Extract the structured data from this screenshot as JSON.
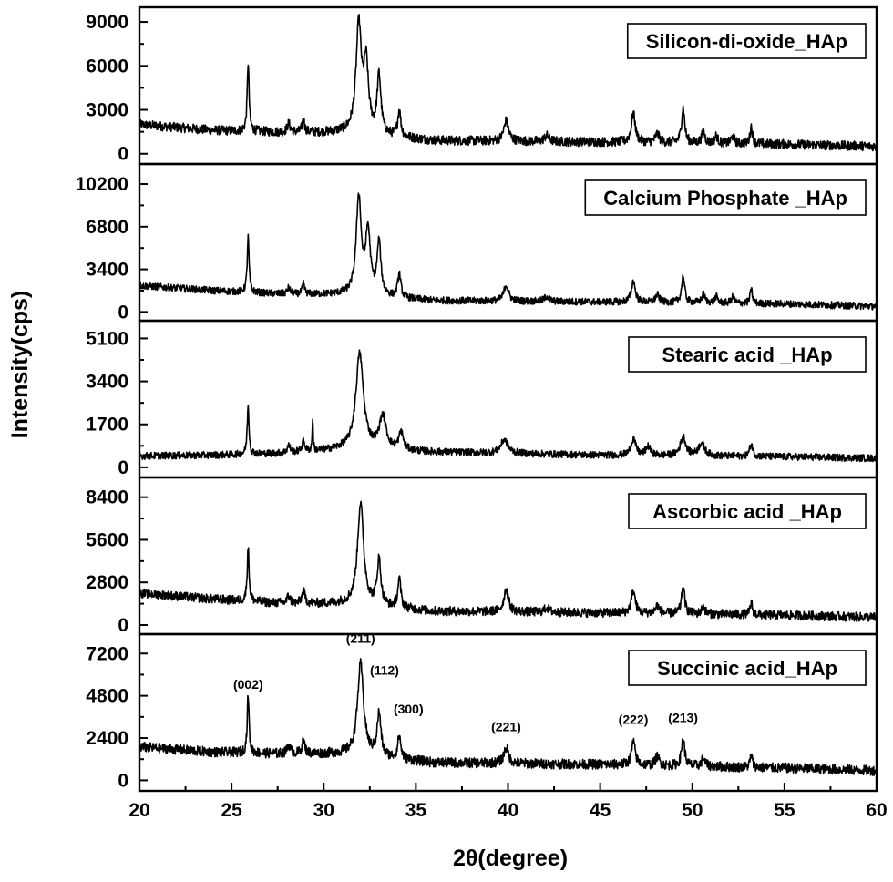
{
  "chart_data": {
    "type": "line",
    "layout": "stacked-panels",
    "xlabel": "2θ(degree)",
    "ylabel": "Intensity(cps)",
    "xlim": [
      20,
      60
    ],
    "xticks": [
      20,
      25,
      30,
      35,
      40,
      45,
      50,
      55,
      60
    ],
    "grid": false,
    "legend_placement": "top-right",
    "panels": [
      {
        "name": "Silicon-di-oxide_HAp",
        "ylim": [
          -700,
          10000
        ],
        "yticks": [
          0,
          3000,
          6000,
          9000
        ],
        "baseline": [
          [
            20,
            2000
          ],
          [
            24,
            1600
          ],
          [
            28,
            1450
          ],
          [
            31,
            1450
          ],
          [
            36,
            900
          ],
          [
            45,
            800
          ],
          [
            55,
            650
          ],
          [
            60,
            500
          ]
        ],
        "peaks": [
          [
            25.9,
            4700,
            0.12
          ],
          [
            28.1,
            600,
            0.2
          ],
          [
            28.9,
            900,
            0.15
          ],
          [
            31.9,
            7300,
            0.35
          ],
          [
            32.3,
            4500,
            0.3
          ],
          [
            33.0,
            4000,
            0.25
          ],
          [
            34.1,
            1800,
            0.2
          ],
          [
            39.9,
            1400,
            0.3
          ],
          [
            42.1,
            400,
            0.3
          ],
          [
            46.8,
            2000,
            0.25
          ],
          [
            48.1,
            600,
            0.25
          ],
          [
            49.5,
            2400,
            0.2
          ],
          [
            50.6,
            800,
            0.2
          ],
          [
            51.3,
            500,
            0.2
          ],
          [
            52.2,
            500,
            0.2
          ],
          [
            53.2,
            1200,
            0.15
          ]
        ],
        "noise": 320
      },
      {
        "name": "Calcium Phosphate _HAp",
        "ylim": [
          -700,
          11800
        ],
        "yticks": [
          0,
          3400,
          6800,
          10200
        ],
        "baseline": [
          [
            20,
            2100
          ],
          [
            24,
            1700
          ],
          [
            28,
            1400
          ],
          [
            31,
            1400
          ],
          [
            36,
            900
          ],
          [
            45,
            800
          ],
          [
            55,
            650
          ],
          [
            60,
            450
          ]
        ],
        "peaks": [
          [
            25.9,
            4400,
            0.12
          ],
          [
            28.1,
            500,
            0.2
          ],
          [
            28.9,
            800,
            0.15
          ],
          [
            31.9,
            7800,
            0.32
          ],
          [
            32.4,
            5000,
            0.3
          ],
          [
            33.0,
            4200,
            0.25
          ],
          [
            34.1,
            1900,
            0.2
          ],
          [
            39.9,
            1300,
            0.3
          ],
          [
            42.1,
            400,
            0.3
          ],
          [
            46.8,
            1700,
            0.25
          ],
          [
            48.1,
            600,
            0.25
          ],
          [
            49.5,
            2100,
            0.2
          ],
          [
            50.6,
            700,
            0.2
          ],
          [
            51.3,
            500,
            0.2
          ],
          [
            52.2,
            500,
            0.2
          ],
          [
            53.2,
            1100,
            0.15
          ]
        ],
        "noise": 280
      },
      {
        "name": "Stearic acid _HAp",
        "ylim": [
          -400,
          5800
        ],
        "yticks": [
          0,
          1700,
          3400,
          5100
        ],
        "baseline": [
          [
            20,
            450
          ],
          [
            24,
            480
          ],
          [
            28,
            550
          ],
          [
            31,
            700
          ],
          [
            36,
            600
          ],
          [
            45,
            480
          ],
          [
            55,
            420
          ],
          [
            60,
            360
          ]
        ],
        "peaks": [
          [
            25.9,
            1900,
            0.12
          ],
          [
            28.1,
            300,
            0.2
          ],
          [
            28.9,
            400,
            0.2
          ],
          [
            29.4,
            1300,
            0.06
          ],
          [
            31.95,
            3800,
            0.5
          ],
          [
            33.2,
            1300,
            0.45
          ],
          [
            34.2,
            700,
            0.3
          ],
          [
            39.8,
            550,
            0.45
          ],
          [
            46.8,
            650,
            0.3
          ],
          [
            47.6,
            350,
            0.3
          ],
          [
            49.5,
            750,
            0.35
          ],
          [
            50.5,
            500,
            0.4
          ],
          [
            53.2,
            500,
            0.2
          ]
        ],
        "noise": 140
      },
      {
        "name": "Ascorbic acid _HAp",
        "ylim": [
          -600,
          9700
        ],
        "yticks": [
          0,
          2800,
          5600,
          8400
        ],
        "baseline": [
          [
            20,
            2100
          ],
          [
            24,
            1700
          ],
          [
            28,
            1400
          ],
          [
            31,
            1400
          ],
          [
            36,
            900
          ],
          [
            45,
            800
          ],
          [
            55,
            650
          ],
          [
            60,
            500
          ]
        ],
        "peaks": [
          [
            25.9,
            3600,
            0.12
          ],
          [
            28.1,
            500,
            0.2
          ],
          [
            28.9,
            800,
            0.2
          ],
          [
            32.0,
            6700,
            0.4
          ],
          [
            33.0,
            3000,
            0.25
          ],
          [
            34.1,
            1900,
            0.2
          ],
          [
            39.9,
            1500,
            0.3
          ],
          [
            42.1,
            300,
            0.3
          ],
          [
            46.8,
            1500,
            0.25
          ],
          [
            48.1,
            500,
            0.25
          ],
          [
            49.5,
            1800,
            0.2
          ],
          [
            50.6,
            500,
            0.2
          ],
          [
            53.2,
            800,
            0.15
          ]
        ],
        "noise": 300
      },
      {
        "name": "Succinic acid_HAp",
        "ylim": [
          -600,
          8300
        ],
        "yticks": [
          0,
          2400,
          4800,
          7200
        ],
        "baseline": [
          [
            20,
            1900
          ],
          [
            24,
            1600
          ],
          [
            28,
            1500
          ],
          [
            31,
            1500
          ],
          [
            36,
            1000
          ],
          [
            45,
            900
          ],
          [
            55,
            700
          ],
          [
            60,
            550
          ]
        ],
        "peaks": [
          [
            25.9,
            3300,
            0.12
          ],
          [
            28.1,
            500,
            0.2
          ],
          [
            28.9,
            700,
            0.2
          ],
          [
            32.0,
            5200,
            0.4
          ],
          [
            33.0,
            2400,
            0.25
          ],
          [
            34.1,
            1300,
            0.2
          ],
          [
            39.9,
            900,
            0.3
          ],
          [
            46.8,
            1300,
            0.25
          ],
          [
            48.1,
            500,
            0.25
          ],
          [
            49.5,
            1600,
            0.2
          ],
          [
            50.6,
            500,
            0.2
          ],
          [
            53.2,
            700,
            0.15
          ]
        ],
        "noise": 280,
        "annotations": [
          {
            "text": "(002)",
            "x": 25.9,
            "y": 5200
          },
          {
            "text": "(211)",
            "x": 32.0,
            "y": 7800
          },
          {
            "text": "(112)",
            "x": 33.3,
            "y": 6000
          },
          {
            "text": "(300)",
            "x": 34.6,
            "y": 3800
          },
          {
            "text": "(221)",
            "x": 39.9,
            "y": 2800
          },
          {
            "text": "(222)",
            "x": 46.8,
            "y": 3200
          },
          {
            "text": "(213)",
            "x": 49.5,
            "y": 3300
          }
        ]
      }
    ]
  }
}
